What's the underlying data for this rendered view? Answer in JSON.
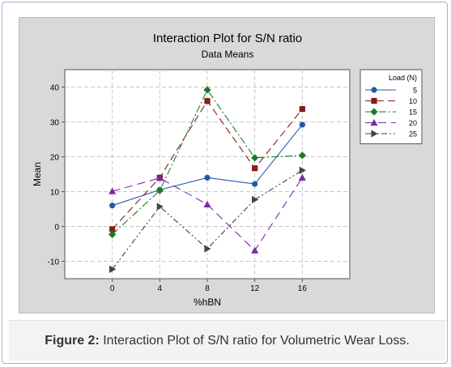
{
  "chart_data": {
    "type": "line",
    "title": "Interaction Plot for S/N ratio",
    "subtitle": "Data Means",
    "xlabel": "%hBN",
    "ylabel": "Mean",
    "categories": [
      "0",
      "4",
      "8",
      "12",
      "16"
    ],
    "ylim": [
      -15,
      45
    ],
    "yticks": [
      -10,
      0,
      10,
      20,
      30,
      40
    ],
    "grid": true,
    "legend": {
      "title": "Load (N)",
      "placement": "right"
    },
    "series": [
      {
        "name": "5",
        "values": [
          6,
          10.5,
          14,
          12.2,
          29.2
        ],
        "color": "#1f5aa6",
        "marker": "circle",
        "dash": "solid"
      },
      {
        "name": "10",
        "values": [
          -0.8,
          14,
          36,
          16.7,
          33.7
        ],
        "color": "#8b1a1a",
        "marker": "square",
        "dash": "long-dash"
      },
      {
        "name": "15",
        "values": [
          -2.3,
          10.3,
          39.2,
          19.7,
          20.4
        ],
        "color": "#1a7a2a",
        "marker": "diamond",
        "dash": "dash-dot"
      },
      {
        "name": "20",
        "values": [
          10.1,
          13.9,
          6.3,
          -6.9,
          14
        ],
        "color": "#7a2aa6",
        "marker": "triangle-up",
        "dash": "long-dash-gap"
      },
      {
        "name": "25",
        "values": [
          -12.3,
          5.7,
          -6.4,
          7.7,
          16.1
        ],
        "color": "#444444",
        "marker": "triangle-right",
        "dash": "dash-dot-dot"
      }
    ]
  },
  "caption": {
    "label": "Figure 2:",
    "text": " Interaction Plot of S/N ratio for Volumetric Wear Loss."
  }
}
